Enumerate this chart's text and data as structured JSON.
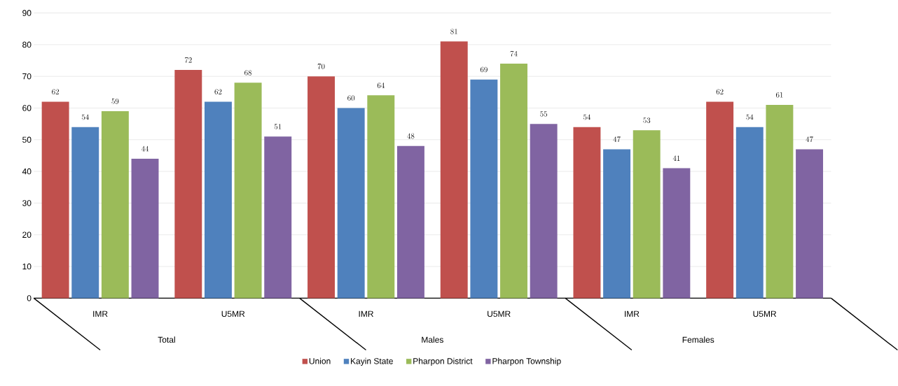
{
  "chart_data": {
    "type": "bar",
    "categories": [
      "IMR",
      "U5MR",
      "IMR",
      "U5MR",
      "IMR",
      "U5MR"
    ],
    "annotations": [
      "Total",
      "Males",
      "Females"
    ],
    "series": [
      {
        "name": "Union",
        "color": "#c0504d",
        "values": [
          62,
          72,
          70,
          81,
          54,
          62
        ]
      },
      {
        "name": "Kayin State",
        "color": "#4f81bd",
        "values": [
          54,
          62,
          60,
          69,
          47,
          54
        ]
      },
      {
        "name": "Pharpon District",
        "color": "#9bbb59",
        "values": [
          59,
          68,
          64,
          74,
          53,
          61
        ]
      },
      {
        "name": "Pharpon Township",
        "color": "#8064a2",
        "values": [
          44,
          51,
          48,
          55,
          41,
          47
        ]
      }
    ],
    "ylim": [
      0,
      90
    ],
    "yticks": [
      0,
      10,
      20,
      30,
      40,
      50,
      60,
      70,
      80,
      90
    ],
    "grid": "y",
    "legend": "bottom",
    "data_labels": true
  }
}
